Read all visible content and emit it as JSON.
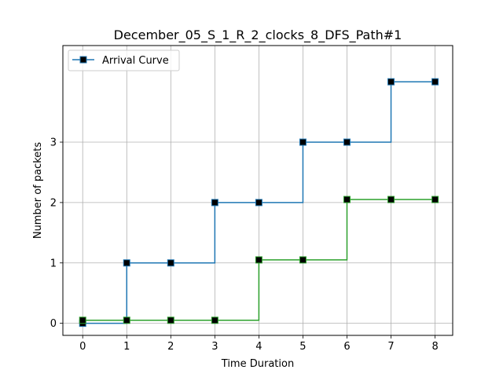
{
  "chart_data": {
    "type": "line",
    "title": "December_05_S_1_R_2_clocks_8_DFS_Path#1",
    "xlabel": "Time Duration",
    "ylabel": "Number of packets",
    "xlim": [
      -0.45,
      8.4
    ],
    "ylim": [
      -0.2,
      4.6
    ],
    "xticks": [
      0,
      1,
      2,
      3,
      4,
      5,
      6,
      7,
      8
    ],
    "yticks": [
      0,
      1,
      2,
      3
    ],
    "grid": true,
    "legend_position": "top-left",
    "step": "post",
    "series": [
      {
        "name": "Arrival Curve",
        "color": "#1f77b4",
        "marker": "square",
        "x": [
          0,
          1,
          2,
          3,
          4,
          5,
          6,
          7,
          8
        ],
        "y": [
          0,
          1,
          1,
          2,
          2,
          3,
          3,
          4,
          4
        ],
        "step_start": [
          0,
          0
        ]
      },
      {
        "color": "#2ca02c",
        "marker": "square",
        "x": [
          0,
          1,
          2,
          3,
          4,
          5,
          6,
          7,
          8
        ],
        "y": [
          0.05,
          0.05,
          0.05,
          0.05,
          1.05,
          1.05,
          2.05,
          2.05,
          2.05
        ],
        "step_start": [
          -0.05,
          0.05
        ]
      }
    ]
  }
}
